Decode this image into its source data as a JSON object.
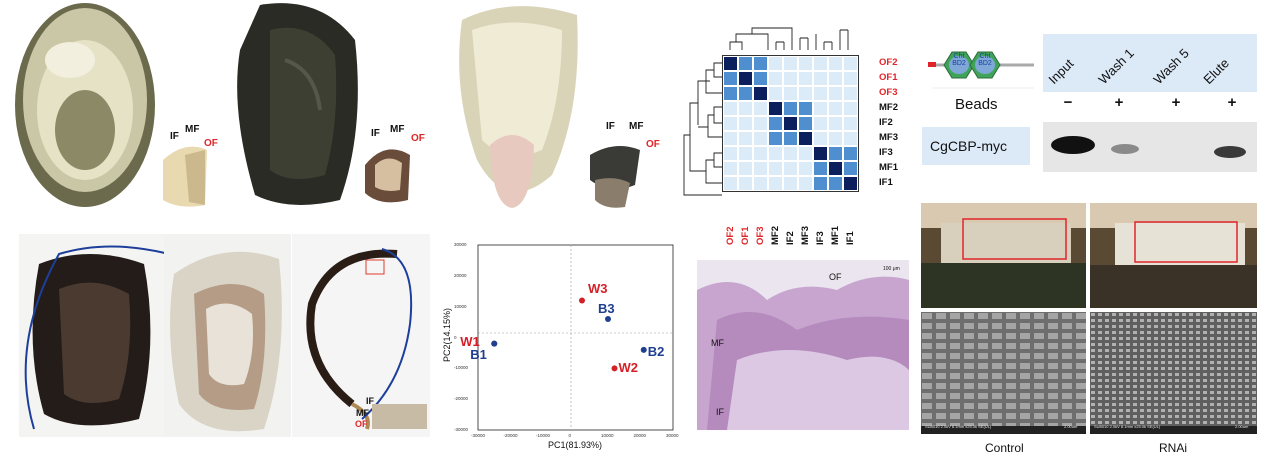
{
  "panel_a": {
    "labels": [
      "IF",
      "MF",
      "OF"
    ],
    "labels2": [
      "IF",
      "MF",
      "OF"
    ],
    "labels3": [
      "IF",
      "MF",
      "OF"
    ]
  },
  "panel_c": {
    "labels": [
      "IF",
      "MF",
      "OF"
    ]
  },
  "heatmap": {
    "row_labels": [
      "OF2",
      "OF1",
      "OF3",
      "MF2",
      "IF2",
      "MF3",
      "IF3",
      "MF1",
      "IF1"
    ],
    "col_labels": [
      "OF2",
      "OF1",
      "OF3",
      "MF2",
      "IF2",
      "MF3",
      "IF3",
      "MF1",
      "IF1"
    ],
    "red_labels": [
      "OF2",
      "OF1",
      "OF3"
    ],
    "colors": {
      "high": "#0b1f5c",
      "mid": "#4f8fd0",
      "low": "#dcebf8"
    }
  },
  "pca": {
    "xlabel": "PC1(81.93%)",
    "ylabel": "PC2(14.15%)",
    "x_ticks": [
      "-30000",
      "-20000",
      "-10000",
      "0",
      "10000",
      "20000",
      "30000"
    ],
    "y_ticks": [
      "30000",
      "20000",
      "10000",
      "0",
      "-10000",
      "-20000",
      "-30000"
    ],
    "points": [
      {
        "name": "W1",
        "x": -25000,
        "y": -2000,
        "color": "#d42027"
      },
      {
        "name": "B1",
        "x": -25000,
        "y": -2000,
        "color": "#1f3f8f"
      },
      {
        "name": "W3",
        "x": 2000,
        "y": 12000,
        "color": "#d42027"
      },
      {
        "name": "B3",
        "x": 10000,
        "y": 6000,
        "color": "#1f3f8f"
      },
      {
        "name": "W2",
        "x": 12000,
        "y": -10000,
        "color": "#d42027"
      },
      {
        "name": "B2",
        "x": 21000,
        "y": -4000,
        "color": "#1f3f8f"
      }
    ]
  },
  "histology": {
    "labels": [
      "OF",
      "MF",
      "IF"
    ],
    "scale": "100 μm"
  },
  "pulldown": {
    "domain1": "Cht\nBD2",
    "domain2": "Cht\nBD2",
    "lanes": [
      "Input",
      "Wash 1",
      "Wash 5",
      "Elute"
    ],
    "beads_label": "Beads",
    "beads_signs": [
      "−",
      "+",
      "+",
      "+"
    ],
    "protein_label": "CgCBP-myc"
  },
  "rnai": {
    "captions": [
      "Control",
      "RNAi"
    ],
    "sem_info": "SU8010 2.0kV 8.1mm x25.0k SE(UL)",
    "sem_scale": "2.00um"
  }
}
